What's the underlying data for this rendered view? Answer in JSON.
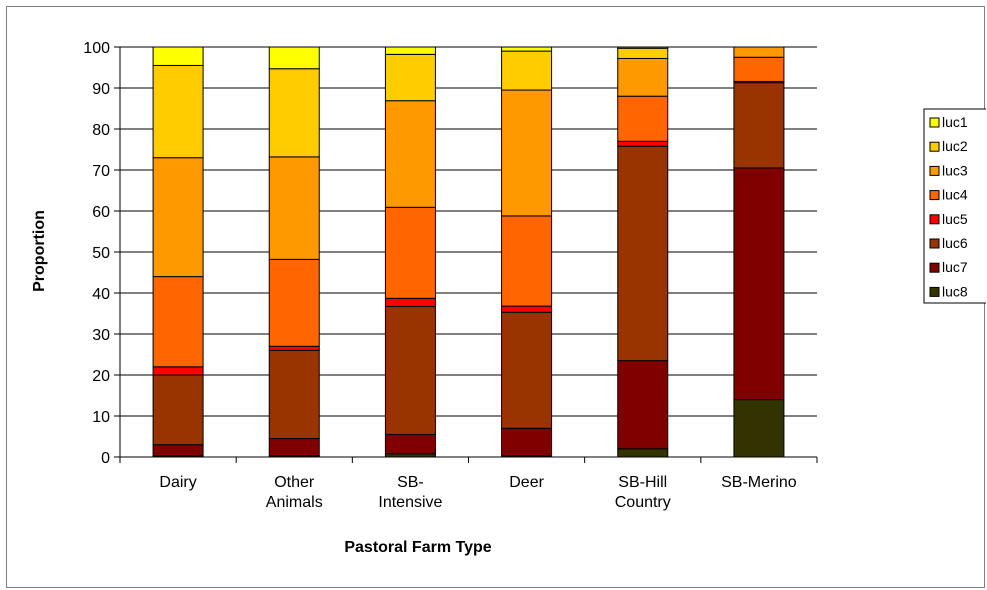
{
  "chart_data": {
    "type": "bar",
    "stacked": true,
    "title": "",
    "xlabel": "Pastoral Farm Type",
    "ylabel": "Proportion",
    "ylim": [
      0,
      100
    ],
    "yticks": [
      0,
      10,
      20,
      30,
      40,
      50,
      60,
      70,
      80,
      90,
      100
    ],
    "grid": true,
    "legend_position": "right",
    "categories": [
      [
        "Dairy"
      ],
      [
        "Other",
        "Animals"
      ],
      [
        "SB-",
        "Intensive"
      ],
      [
        "Deer"
      ],
      [
        "SB-Hill",
        "Country"
      ],
      [
        "SB-Merino"
      ]
    ],
    "series": [
      {
        "name": "luc8",
        "color": "#333300",
        "values": [
          0.3,
          0.3,
          0.8,
          0.3,
          2.0,
          14.0
        ]
      },
      {
        "name": "luc7",
        "color": "#800000",
        "values": [
          2.7,
          4.2,
          4.7,
          6.7,
          21.5,
          56.5
        ]
      },
      {
        "name": "luc6",
        "color": "#993300",
        "values": [
          17.0,
          21.5,
          31.2,
          28.3,
          52.3,
          20.8
        ]
      },
      {
        "name": "luc5",
        "color": "#FF0000",
        "values": [
          2.0,
          1.0,
          2.0,
          1.5,
          1.2,
          0.3
        ]
      },
      {
        "name": "luc4",
        "color": "#FF6600",
        "values": [
          22.0,
          21.2,
          22.2,
          22.0,
          11.0,
          5.9
        ]
      },
      {
        "name": "luc3",
        "color": "#FF9900",
        "values": [
          29.0,
          25.0,
          26.0,
          30.7,
          9.2,
          2.5
        ]
      },
      {
        "name": "luc2",
        "color": "#FFCC00",
        "values": [
          22.5,
          21.5,
          11.3,
          9.5,
          2.5,
          0.0
        ]
      },
      {
        "name": "luc1",
        "color": "#FFFF00",
        "values": [
          4.5,
          5.3,
          1.8,
          1.0,
          0.3,
          0.0
        ]
      }
    ],
    "legend_order": [
      "luc1",
      "luc2",
      "luc3",
      "luc4",
      "luc5",
      "luc6",
      "luc7",
      "luc8"
    ]
  }
}
